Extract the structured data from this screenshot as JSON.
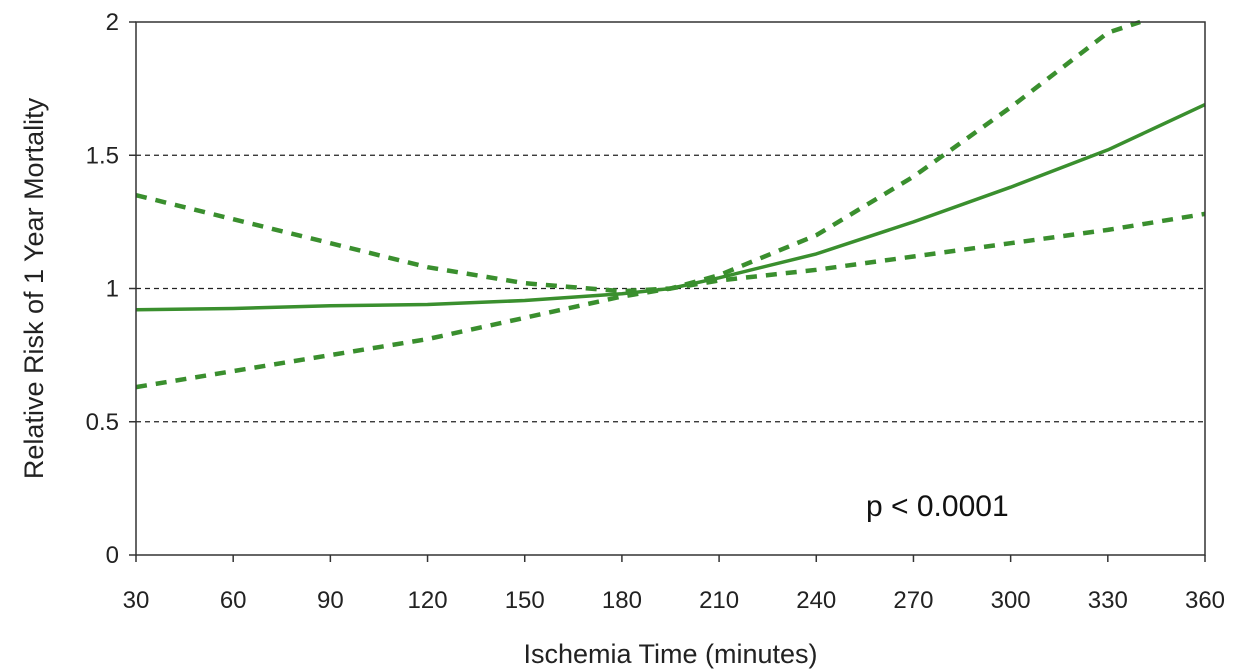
{
  "chart_data": {
    "type": "line",
    "xlabel": "Ischemia Time (minutes)",
    "ylabel": "Relative Risk of 1 Year Mortality",
    "xlim": [
      30,
      360
    ],
    "ylim": [
      0,
      2
    ],
    "x_ticks": [
      "30",
      "60",
      "90",
      "120",
      "150",
      "180",
      "210",
      "240",
      "270",
      "300",
      "330",
      "360"
    ],
    "y_ticks": [
      "0",
      "0.5",
      "1",
      "1.5",
      "2"
    ],
    "grid": "horizontal dashed at 0.5, 1, 1.5",
    "annotation": "p < 0.0001",
    "series": [
      {
        "role": "estimate",
        "style": "solid",
        "color": "#3a8f2e",
        "x": [
          30,
          60,
          90,
          120,
          150,
          180,
          195,
          210,
          240,
          270,
          300,
          330,
          360
        ],
        "y": [
          0.92,
          0.925,
          0.935,
          0.94,
          0.955,
          0.98,
          1.0,
          1.04,
          1.13,
          1.25,
          1.38,
          1.52,
          1.69
        ]
      },
      {
        "role": "upper-bound",
        "style": "dashed",
        "color": "#3a8f2e",
        "x": [
          30,
          60,
          90,
          120,
          150,
          180,
          195,
          210,
          240,
          270,
          300,
          330,
          340
        ],
        "y": [
          1.35,
          1.26,
          1.17,
          1.08,
          1.02,
          0.99,
          1.0,
          1.05,
          1.2,
          1.42,
          1.68,
          1.96,
          2.0
        ]
      },
      {
        "role": "lower-bound",
        "style": "dashed",
        "color": "#3a8f2e",
        "x": [
          30,
          60,
          90,
          120,
          150,
          180,
          195,
          210,
          240,
          270,
          300,
          330,
          360
        ],
        "y": [
          0.63,
          0.69,
          0.75,
          0.81,
          0.89,
          0.97,
          1.0,
          1.03,
          1.07,
          1.12,
          1.17,
          1.22,
          1.28
        ]
      }
    ]
  }
}
